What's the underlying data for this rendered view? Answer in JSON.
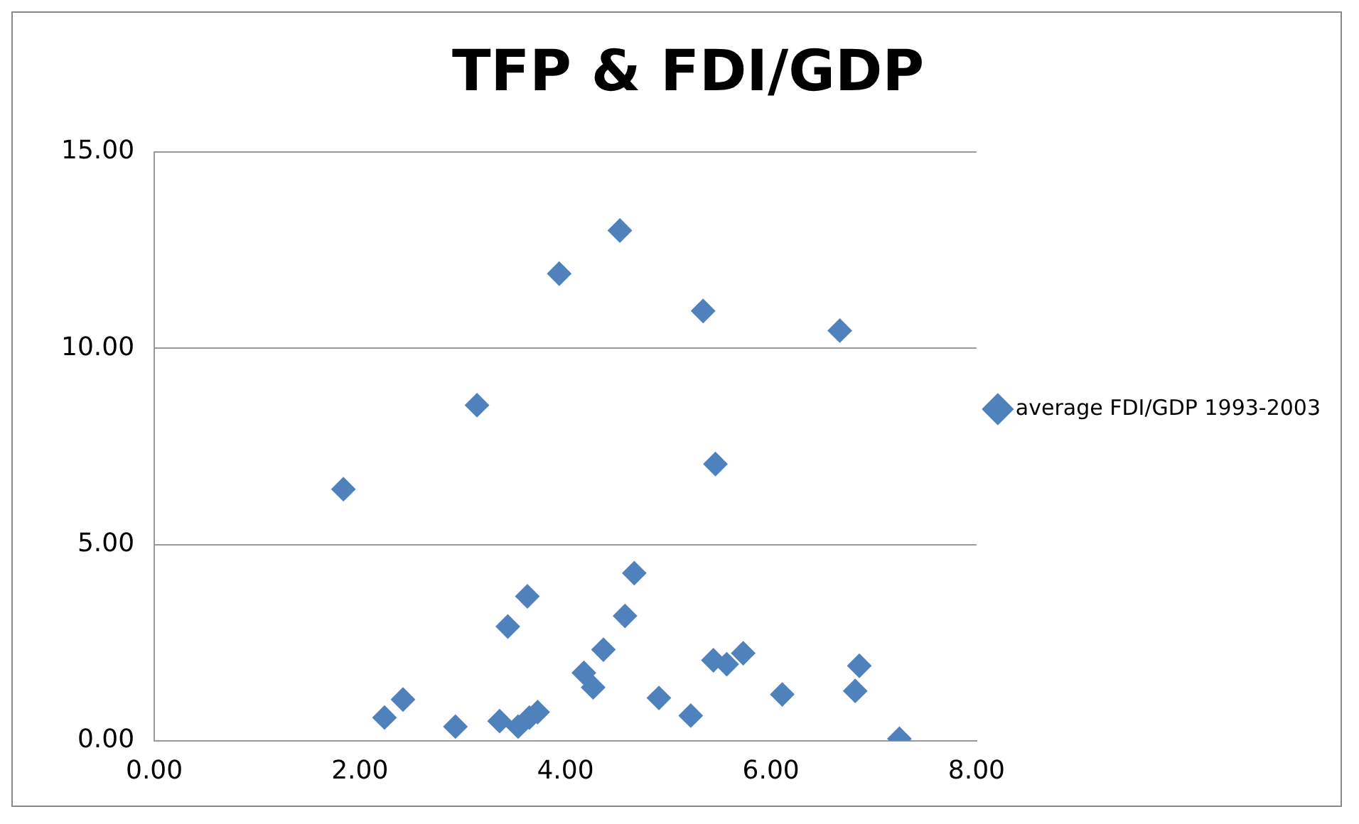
{
  "chart_data": {
    "type": "scatter",
    "title": "TFP & FDI/GDP",
    "x": [
      1.84,
      2.24,
      2.42,
      2.93,
      3.14,
      3.36,
      3.44,
      3.54,
      3.63,
      3.65,
      3.73,
      3.94,
      4.18,
      4.27,
      4.37,
      4.53,
      4.58,
      4.67,
      4.91,
      5.22,
      5.34,
      5.44,
      5.46,
      5.57,
      5.73,
      6.11,
      6.67,
      6.82,
      6.86,
      7.25
    ],
    "series": [
      {
        "name": "average FDI/GDP 1993-2003",
        "color": "#4f81bd",
        "values": [
          6.41,
          0.59,
          1.05,
          0.36,
          8.55,
          0.5,
          2.91,
          0.36,
          3.68,
          0.59,
          0.73,
          11.9,
          1.73,
          1.36,
          2.32,
          13.0,
          3.18,
          4.27,
          1.09,
          0.64,
          10.95,
          2.05,
          7.05,
          1.95,
          2.23,
          1.18,
          10.45,
          1.27,
          1.91,
          0.05
        ]
      }
    ],
    "xlim": [
      0,
      8
    ],
    "xticks": [
      {
        "value": 0,
        "label": "0.00"
      },
      {
        "value": 2,
        "label": "2.00"
      },
      {
        "value": 4,
        "label": "4.00"
      },
      {
        "value": 6,
        "label": "6.00"
      },
      {
        "value": 8,
        "label": "8.00"
      }
    ],
    "ylim": [
      0,
      15
    ],
    "yticks": [
      {
        "value": 0,
        "label": "0.00"
      },
      {
        "value": 5,
        "label": "5.00"
      },
      {
        "value": 10,
        "label": "10.00"
      },
      {
        "value": 15,
        "label": "15.00"
      }
    ],
    "grid": "y",
    "legend": "right",
    "marker": "diamond"
  }
}
